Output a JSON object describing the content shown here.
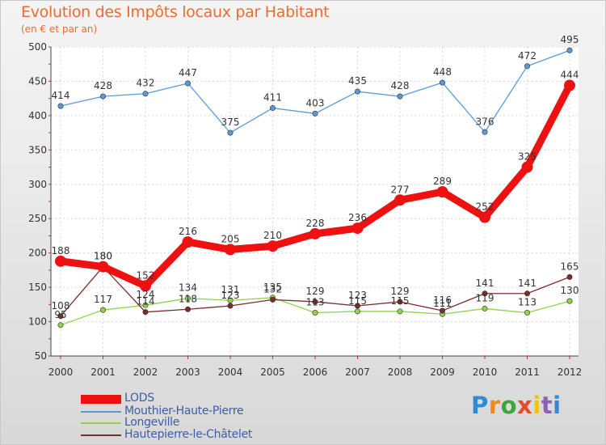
{
  "title": "Evolution des Impôts locaux par Habitant",
  "subtitle": "(en € et par an)",
  "logo": "Proxiti",
  "logo_letter_colors": [
    "#2e8bd6",
    "#f08a1c",
    "#3aa83a",
    "#e94a2a",
    "#f2c20e",
    "#8e5fb8",
    "#2e8bd6"
  ],
  "chart_data": {
    "type": "line",
    "categories": [
      "2000",
      "2001",
      "2002",
      "2003",
      "2004",
      "2005",
      "2006",
      "2007",
      "2008",
      "2009",
      "2010",
      "2011",
      "2012"
    ],
    "ylim": [
      50,
      500
    ],
    "yticks": [
      50,
      100,
      150,
      200,
      250,
      300,
      350,
      400,
      450,
      500
    ],
    "grid": true,
    "series": [
      {
        "name": "LODS",
        "color": "#ee1111",
        "values": [
          188,
          180,
          152,
          216,
          205,
          210,
          228,
          236,
          277,
          289,
          252,
          325,
          444
        ],
        "labels": [
          "188",
          "180",
          "152",
          "216",
          "205",
          "210",
          "228",
          "236",
          "277",
          "289",
          "252",
          "325",
          "444"
        ]
      },
      {
        "name": "Mouthier-Haute-Pierre",
        "color": "#5b9bd5",
        "values": [
          414,
          428,
          432,
          447,
          375,
          411,
          403,
          435,
          428,
          448,
          376,
          472,
          495
        ],
        "labels": [
          "414",
          "428",
          "432",
          "447",
          "375",
          "411",
          "403",
          "435",
          "428",
          "448",
          "376",
          "472",
          "495"
        ]
      },
      {
        "name": "Longeville",
        "color": "#92d050",
        "values": [
          95,
          117,
          124,
          134,
          131,
          135,
          113,
          115,
          115,
          111,
          119,
          113,
          130
        ],
        "labels": [
          "95",
          "117",
          "124",
          "134",
          "131",
          "135",
          "113",
          "115",
          "115",
          "111",
          "119",
          "113",
          "130"
        ]
      },
      {
        "name": "Hautepierre-le-Châtelet",
        "color": "#7b2d2d",
        "values": [
          108,
          180,
          114,
          118,
          123,
          132,
          129,
          123,
          129,
          116,
          141,
          141,
          165
        ],
        "labels": [
          "108",
          "180",
          "114",
          "118",
          "123",
          "132",
          "129",
          "123",
          "129",
          "116",
          "141",
          "141",
          "165"
        ]
      }
    ]
  }
}
